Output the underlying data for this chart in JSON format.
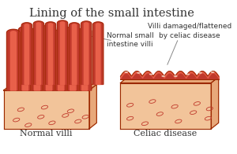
{
  "title": "Lining of the small intestine",
  "label_left": "Normal villi",
  "label_right": "Celiac disease",
  "annotation_left": "Normal small\nintestine villi",
  "annotation_right": "Villi damaged/flattened\nby celiac disease",
  "bg_color": "#ffffff",
  "title_fontsize": 10.5,
  "label_fontsize": 8,
  "annotation_fontsize": 6.5,
  "villi_color": "#c0392b",
  "villi_light": "#e8604a",
  "villi_cream": "#f5c8a0",
  "base_color": "#f2c49a",
  "base_side": "#e8a87a",
  "base_bottom": "#dda060",
  "cell_color": "#c0392b",
  "outline_color": "#9b2800",
  "line_color": "#888888",
  "text_color": "#333333"
}
